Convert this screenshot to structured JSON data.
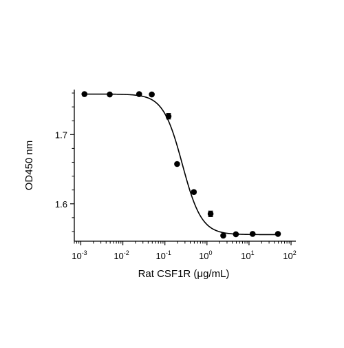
{
  "chart_data": {
    "type": "scatter",
    "title": "",
    "xlabel": "Rat CSF1R (μg/mL)",
    "ylabel": "OD450 nm",
    "xscale": "log",
    "xlim": [
      0.0007,
      130
    ],
    "ylim": [
      1.546,
      1.765
    ],
    "grid": false,
    "legend": "none",
    "x_ticks": [
      {
        "value": 0.001,
        "base": "10",
        "exp": "-3"
      },
      {
        "value": 0.01,
        "base": "10",
        "exp": "-2"
      },
      {
        "value": 0.1,
        "base": "10",
        "exp": "-1"
      },
      {
        "value": 1,
        "base": "10",
        "exp": "0"
      },
      {
        "value": 10,
        "base": "10",
        "exp": "1"
      },
      {
        "value": 100,
        "base": "10",
        "exp": "2"
      }
    ],
    "y_ticks": [
      {
        "value": 1.6,
        "label": "1.6"
      },
      {
        "value": 1.7,
        "label": "1.7"
      }
    ],
    "series": [
      {
        "points": [
          {
            "x": 0.00122,
            "y": 1.7585,
            "err": 0.001
          },
          {
            "x": 0.00488,
            "y": 1.758,
            "err": 0.001
          },
          {
            "x": 0.0244,
            "y": 1.7585,
            "err": 0.001
          },
          {
            "x": 0.0488,
            "y": 1.758,
            "err": 0.001
          },
          {
            "x": 0.122,
            "y": 1.7265,
            "err": 0.004
          },
          {
            "x": 0.195,
            "y": 1.6575,
            "err": 0.002
          },
          {
            "x": 0.488,
            "y": 1.617,
            "err": 0.002
          },
          {
            "x": 1.22,
            "y": 1.5855,
            "err": 0.004
          },
          {
            "x": 2.44,
            "y": 1.554,
            "err": 0.001
          },
          {
            "x": 4.88,
            "y": 1.556,
            "err": 0.001
          },
          {
            "x": 12.2,
            "y": 1.5565,
            "err": 0.001
          },
          {
            "x": 48.8,
            "y": 1.5565,
            "err": 0.001
          }
        ]
      }
    ],
    "fit": {
      "model": "4PL",
      "top": 1.7585,
      "bottom": 1.5555,
      "ec50": 0.26,
      "hill": 1.9
    },
    "colors": {
      "marks": "#000000",
      "axis": "#000000"
    }
  }
}
